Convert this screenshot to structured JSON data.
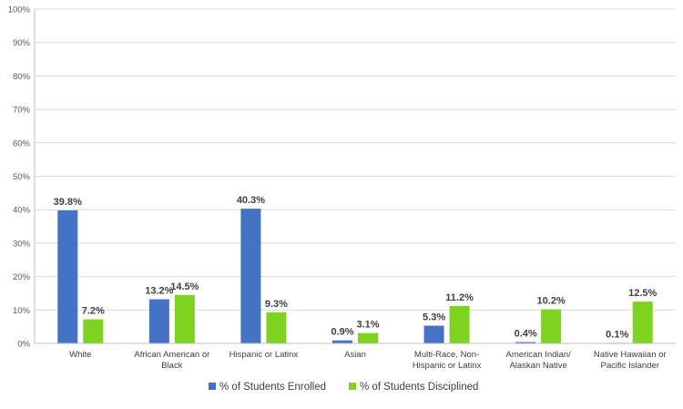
{
  "chart_data": {
    "type": "bar",
    "categories": [
      [
        "White"
      ],
      [
        "African American or",
        "Black"
      ],
      [
        "Hispanic or Latinx"
      ],
      [
        "Asian"
      ],
      [
        "Multi-Race, Non-",
        "Hispanic or Latinx"
      ],
      [
        "American Indian/",
        "Alaskan Native"
      ],
      [
        "Native Hawaiian or",
        "Pacific Islander"
      ]
    ],
    "series": [
      {
        "name": "% of Students Enrolled",
        "color": "#4472C4",
        "values": [
          39.8,
          13.2,
          40.3,
          0.9,
          5.3,
          0.4,
          0.1
        ],
        "labels": [
          "39.8%",
          "13.2%",
          "40.3%",
          "0.9%",
          "5.3%",
          "0.4%",
          "0.1%"
        ]
      },
      {
        "name": "% of Students Disciplined",
        "color": "#7ED321",
        "values": [
          7.2,
          14.5,
          9.3,
          3.1,
          11.2,
          10.2,
          12.5
        ],
        "labels": [
          "7.2%",
          "14.5%",
          "9.3%",
          "3.1%",
          "11.2%",
          "10.2%",
          "12.5%"
        ]
      }
    ],
    "yticks": [
      0,
      10,
      20,
      30,
      40,
      50,
      60,
      70,
      80,
      90,
      100
    ],
    "ytick_labels": [
      "0%",
      "10%",
      "20%",
      "30%",
      "40%",
      "50%",
      "60%",
      "70%",
      "80%",
      "90%",
      "100%"
    ],
    "ylim": [
      0,
      100
    ],
    "grid": true,
    "legend_position": "bottom-center"
  }
}
